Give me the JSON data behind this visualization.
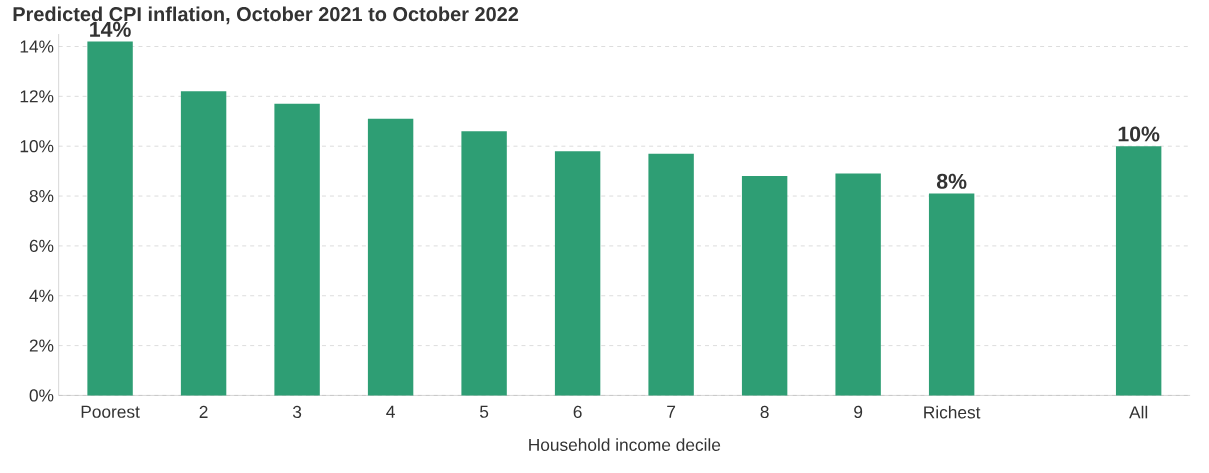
{
  "chart_data": {
    "type": "bar",
    "title": "Predicted CPI inflation, October 2021 to October 2022",
    "xlabel": "Household income decile",
    "categories": [
      "Poorest",
      "2",
      "3",
      "4",
      "5",
      "6",
      "7",
      "8",
      "9",
      "Richest",
      null,
      "All"
    ],
    "values": [
      14.2,
      12.2,
      11.7,
      11.1,
      10.6,
      9.8,
      9.7,
      8.8,
      8.9,
      8.1,
      null,
      10.0
    ],
    "value_labels": [
      "14%",
      null,
      null,
      null,
      null,
      null,
      null,
      null,
      null,
      "8%",
      null,
      "10%"
    ],
    "color": "#2e9e74",
    "ylim": [
      0,
      14.5
    ],
    "yticks": [
      {
        "value": 0,
        "label": "0%"
      },
      {
        "value": 2,
        "label": "2%"
      },
      {
        "value": 4,
        "label": "4%"
      },
      {
        "value": 6,
        "label": "6%"
      },
      {
        "value": 8,
        "label": "8%"
      },
      {
        "value": 10,
        "label": "10%"
      },
      {
        "value": 12,
        "label": "12%"
      },
      {
        "value": 14,
        "label": "14%"
      }
    ],
    "grid": "y"
  }
}
